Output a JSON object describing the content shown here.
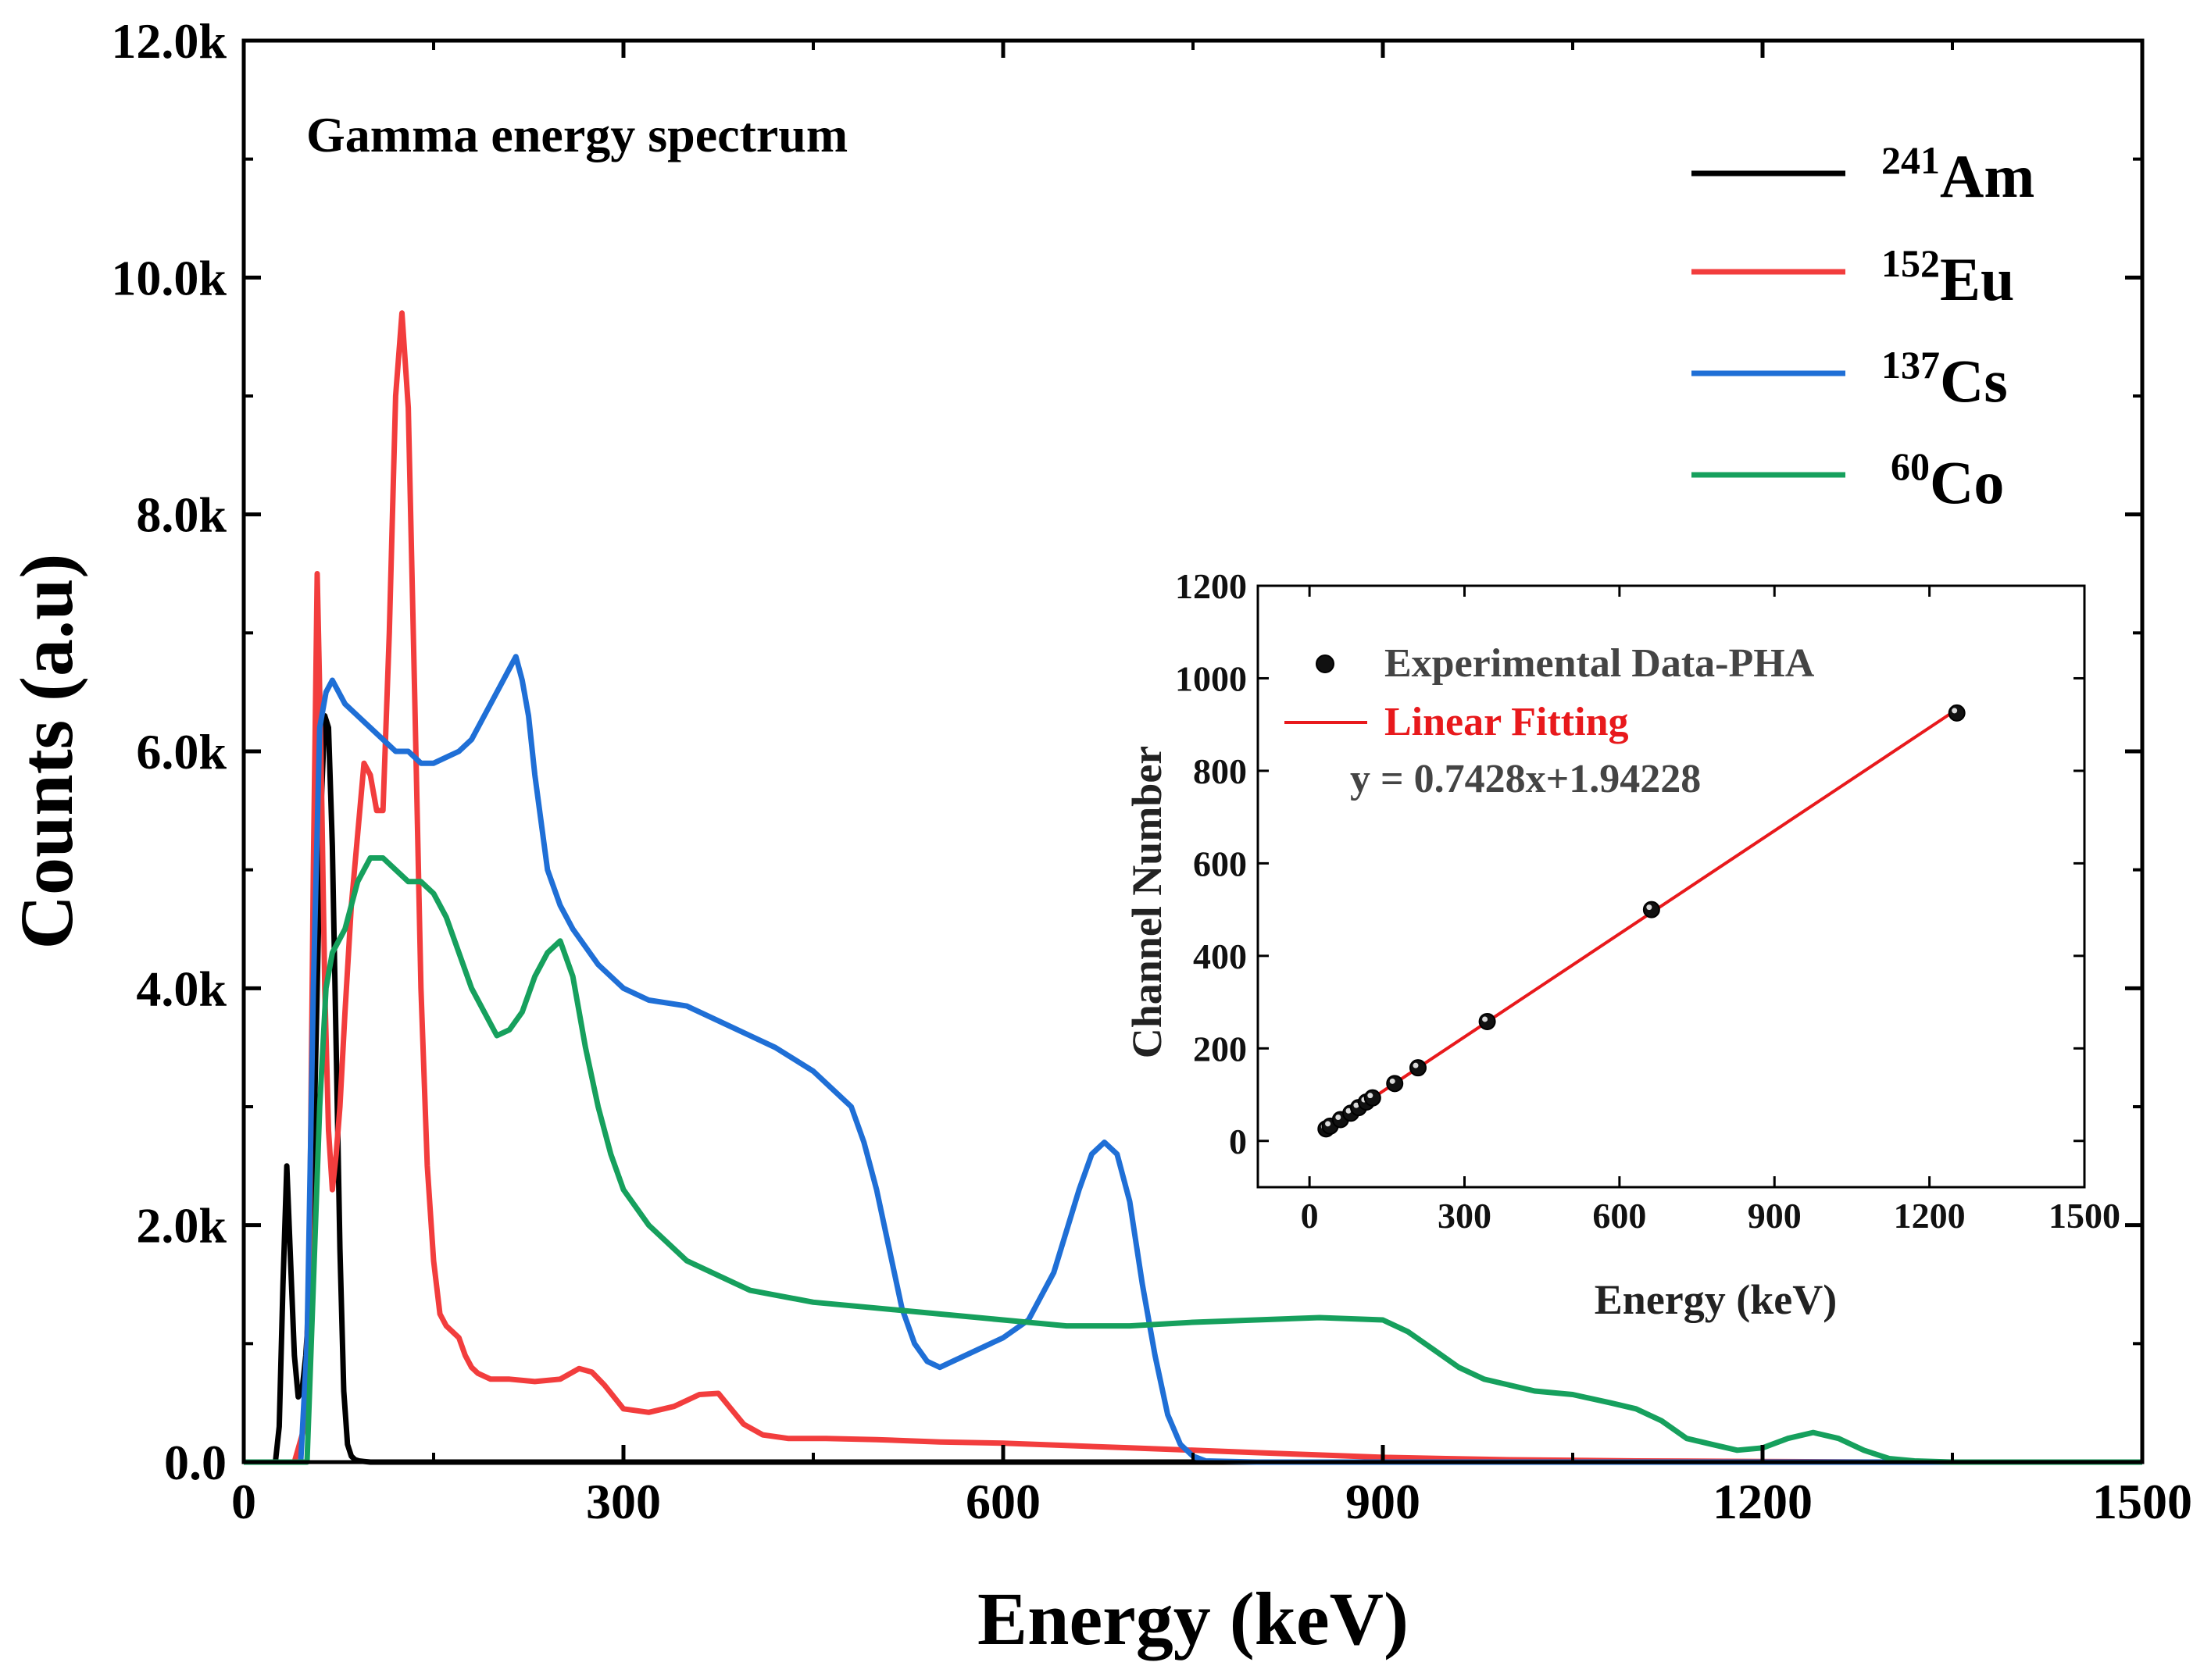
{
  "chart_data": [
    {
      "type": "line",
      "title": "Gamma energy spectrum",
      "xlabel": "Energy (keV)",
      "ylabel": "Counts (a.u)",
      "xlim": [
        0,
        1500
      ],
      "ylim": [
        0,
        12000
      ],
      "xticks": [
        0,
        300,
        600,
        900,
        1200,
        1500
      ],
      "xtick_labels": [
        "0",
        "300",
        "600",
        "900",
        "1200",
        "1500"
      ],
      "yticks": [
        0,
        2000,
        4000,
        6000,
        8000,
        10000,
        12000
      ],
      "ytick_labels": [
        "0.0",
        "2.0k",
        "4.0k",
        "6.0k",
        "8.0k",
        "10.0k",
        "12.0k"
      ],
      "grid": false,
      "legend_position": "top-right",
      "series": [
        {
          "name": "241Am",
          "mass_number": "241",
          "element": "Am",
          "color": "#000000",
          "x": [
            25,
            28,
            31,
            34,
            37,
            40,
            43,
            46,
            49,
            52,
            55,
            58,
            61,
            64,
            67,
            70,
            73,
            76,
            79,
            82,
            85,
            88,
            91,
            95,
            100,
            120,
            200,
            400,
            800,
            1500
          ],
          "y": [
            0,
            300,
            1500,
            2500,
            1700,
            900,
            550,
            600,
            900,
            1400,
            2500,
            4000,
            5500,
            6300,
            6200,
            5200,
            3500,
            1800,
            600,
            150,
            50,
            20,
            10,
            5,
            0,
            0,
            0,
            0,
            0,
            0
          ]
        },
        {
          "name": "152Eu",
          "mass_number": "152",
          "element": "Eu",
          "color": "#F23D3D",
          "x": [
            0,
            40,
            48,
            52,
            55,
            58,
            61,
            64,
            67,
            70,
            73,
            76,
            80,
            85,
            90,
            95,
            100,
            105,
            110,
            115,
            120,
            125,
            130,
            135,
            140,
            145,
            150,
            155,
            160,
            165,
            170,
            175,
            180,
            185,
            195,
            210,
            230,
            250,
            265,
            275,
            285,
            300,
            320,
            340,
            360,
            375,
            385,
            395,
            410,
            430,
            460,
            500,
            550,
            600,
            650,
            700,
            750,
            800,
            850,
            900,
            950,
            1000,
            1100,
            1200,
            1300,
            1500
          ],
          "y": [
            0,
            0,
            300,
            1800,
            5000,
            7500,
            6000,
            4000,
            2800,
            2300,
            2600,
            3000,
            3800,
            4700,
            5300,
            5900,
            5800,
            5500,
            5500,
            7000,
            9000,
            9700,
            8900,
            6500,
            4000,
            2500,
            1700,
            1250,
            1150,
            1100,
            1050,
            900,
            800,
            750,
            700,
            700,
            680,
            700,
            790,
            760,
            650,
            450,
            420,
            470,
            570,
            580,
            450,
            320,
            230,
            200,
            200,
            190,
            170,
            160,
            140,
            120,
            100,
            80,
            60,
            40,
            30,
            20,
            10,
            5,
            0,
            0
          ]
        },
        {
          "name": "137Cs",
          "mass_number": "137",
          "element": "Cs",
          "color": "#1F6FD6",
          "x": [
            0,
            45,
            50,
            55,
            60,
            65,
            70,
            80,
            90,
            100,
            110,
            120,
            130,
            140,
            150,
            160,
            170,
            180,
            190,
            200,
            210,
            215,
            220,
            225,
            230,
            240,
            250,
            260,
            280,
            300,
            320,
            350,
            380,
            400,
            420,
            450,
            480,
            490,
            500,
            510,
            520,
            530,
            540,
            550,
            560,
            580,
            600,
            620,
            640,
            660,
            670,
            680,
            690,
            700,
            710,
            720,
            730,
            740,
            750,
            760,
            800,
            1000,
            1500
          ],
          "y": [
            0,
            0,
            1000,
            4000,
            6200,
            6500,
            6600,
            6400,
            6300,
            6200,
            6100,
            6000,
            6000,
            5900,
            5900,
            5950,
            6000,
            6100,
            6300,
            6500,
            6700,
            6800,
            6600,
            6300,
            5800,
            5000,
            4700,
            4500,
            4200,
            4000,
            3900,
            3850,
            3700,
            3600,
            3500,
            3300,
            3000,
            2700,
            2300,
            1800,
            1300,
            1000,
            850,
            800,
            850,
            950,
            1050,
            1200,
            1600,
            2300,
            2600,
            2700,
            2600,
            2200,
            1500,
            900,
            400,
            150,
            50,
            10,
            0,
            0,
            0
          ]
        },
        {
          "name": "60Co",
          "mass_number": "60",
          "element": "Co",
          "color": "#16A05D",
          "x": [
            0,
            50,
            55,
            60,
            65,
            70,
            80,
            90,
            100,
            110,
            120,
            130,
            140,
            150,
            160,
            170,
            180,
            190,
            200,
            210,
            220,
            230,
            240,
            250,
            260,
            270,
            280,
            290,
            300,
            320,
            350,
            380,
            400,
            450,
            500,
            550,
            600,
            650,
            700,
            750,
            800,
            850,
            900,
            920,
            940,
            960,
            980,
            1000,
            1020,
            1050,
            1080,
            1100,
            1120,
            1140,
            1160,
            1180,
            1200,
            1220,
            1240,
            1260,
            1280,
            1300,
            1320,
            1350,
            1500
          ],
          "y": [
            0,
            0,
            1500,
            3000,
            4000,
            4300,
            4500,
            4900,
            5100,
            5100,
            5000,
            4900,
            4900,
            4800,
            4600,
            4300,
            4000,
            3800,
            3600,
            3650,
            3800,
            4100,
            4300,
            4400,
            4100,
            3500,
            3000,
            2600,
            2300,
            2000,
            1700,
            1550,
            1450,
            1350,
            1300,
            1250,
            1200,
            1150,
            1150,
            1180,
            1200,
            1220,
            1200,
            1100,
            950,
            800,
            700,
            650,
            600,
            570,
            500,
            450,
            350,
            200,
            150,
            100,
            120,
            200,
            250,
            200,
            100,
            30,
            10,
            0,
            0
          ]
        }
      ]
    },
    {
      "type": "scatter",
      "xlabel": "Energy (keV)",
      "ylabel": "Channel Number",
      "xlim": [
        -100,
        1500
      ],
      "ylim": [
        -100,
        1200
      ],
      "xticks": [
        0,
        300,
        600,
        900,
        1200,
        1500
      ],
      "xtick_labels": [
        "0",
        "300",
        "600",
        "900",
        "1200",
        "1500"
      ],
      "yticks": [
        0,
        200,
        400,
        600,
        800,
        1000,
        1200
      ],
      "ytick_labels": [
        "0",
        "200",
        "400",
        "600",
        "800",
        "1000",
        "1200"
      ],
      "legend_position": "top-left",
      "series": [
        {
          "name": "Experimental Data-PHA",
          "color": "#111111",
          "x": [
            32,
            40,
            60,
            80,
            95,
            110,
            122,
            165,
            210,
            344,
            662,
            1253
          ],
          "y": [
            26,
            32,
            46,
            60,
            72,
            84,
            93,
            124,
            158,
            258,
            500,
            925
          ]
        },
        {
          "name": "Linear Fitting",
          "color": "#E8191C",
          "equation": "y = 0.7428x+1.94228",
          "slope": 0.7428,
          "intercept": 1.94228,
          "x_range": [
            25,
            1260
          ]
        }
      ]
    }
  ]
}
